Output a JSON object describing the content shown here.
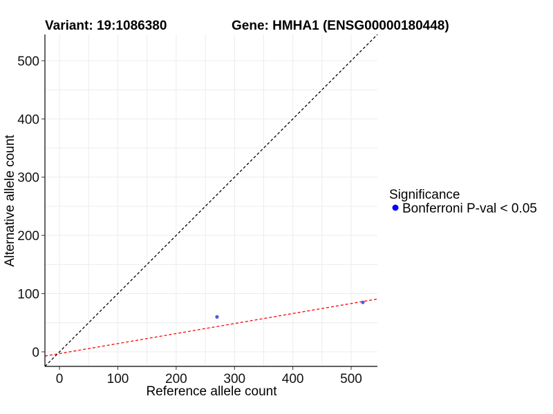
{
  "chart_data": {
    "type": "scatter",
    "title_left": "Variant: 19:1086380",
    "title_right": "Gene: HMHA1 (ENSG00000180448)",
    "xlabel": "Reference allele count",
    "ylabel": "Alternative allele count",
    "xlim": [
      -25,
      545
    ],
    "ylim": [
      -25,
      545
    ],
    "x_ticks": [
      0,
      100,
      200,
      300,
      400,
      500
    ],
    "y_ticks": [
      0,
      100,
      200,
      300,
      400,
      500
    ],
    "grid": true,
    "legend": {
      "title": "Significance",
      "position": "right",
      "entries": [
        {
          "label": "Bonferroni P-val < 0.05",
          "color": "#0000ff"
        }
      ]
    },
    "series": [
      {
        "color": "#4a5be8",
        "points": [
          {
            "x": 270,
            "y": 60
          },
          {
            "x": 520,
            "y": 85
          }
        ]
      }
    ],
    "reference_lines": [
      {
        "kind": "identity",
        "slope": 1,
        "intercept": 0,
        "color": "#000000",
        "style": "dashed"
      },
      {
        "kind": "fit",
        "slope": 0.172,
        "intercept": -3,
        "color": "#ff0000",
        "style": "dashed"
      }
    ]
  }
}
